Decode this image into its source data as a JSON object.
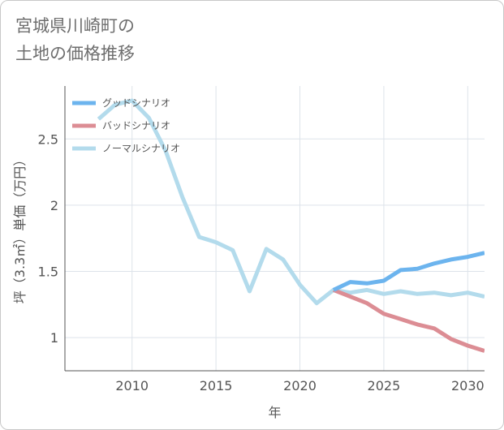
{
  "title_line1": "宮城県川崎町の",
  "title_line2": "土地の価格推移",
  "chart_data": {
    "type": "line",
    "xlabel": "年",
    "ylabel": "坪（3.3㎡）単価（万円）",
    "xlim": [
      2006,
      2031
    ],
    "ylim": [
      0.75,
      2.9
    ],
    "xticks": [
      2010,
      2015,
      2020,
      2025,
      2030
    ],
    "yticks": [
      1,
      1.5,
      2,
      2.5
    ],
    "ytick_labels": [
      "1",
      "1.5",
      "2",
      "2.5"
    ],
    "grid": true,
    "legend_position": "top-left",
    "series": [
      {
        "name": "グッドシナリオ",
        "color": "#6cb4ee",
        "x": [
          2022,
          2023,
          2024,
          2025,
          2026,
          2027,
          2028,
          2029,
          2030,
          2031
        ],
        "y": [
          1.36,
          1.42,
          1.41,
          1.43,
          1.51,
          1.52,
          1.56,
          1.59,
          1.61,
          1.64
        ]
      },
      {
        "name": "バッドシナリオ",
        "color": "#dc8d94",
        "x": [
          2022,
          2023,
          2024,
          2025,
          2026,
          2027,
          2028,
          2029,
          2030,
          2031
        ],
        "y": [
          1.36,
          1.31,
          1.26,
          1.18,
          1.14,
          1.1,
          1.07,
          0.99,
          0.94,
          0.9
        ]
      },
      {
        "name": "ノーマルシナリオ",
        "color": "#b3dbec",
        "x": [
          2008,
          2009,
          2010,
          2011,
          2012,
          2013,
          2014,
          2015,
          2016,
          2017,
          2018,
          2019,
          2020,
          2021,
          2022,
          2023,
          2024,
          2025,
          2026,
          2027,
          2028,
          2029,
          2030,
          2031
        ],
        "y": [
          2.65,
          2.76,
          2.79,
          2.66,
          2.41,
          2.06,
          1.76,
          1.72,
          1.66,
          1.35,
          1.67,
          1.59,
          1.4,
          1.26,
          1.36,
          1.34,
          1.36,
          1.33,
          1.35,
          1.33,
          1.34,
          1.32,
          1.34,
          1.31
        ]
      }
    ]
  }
}
